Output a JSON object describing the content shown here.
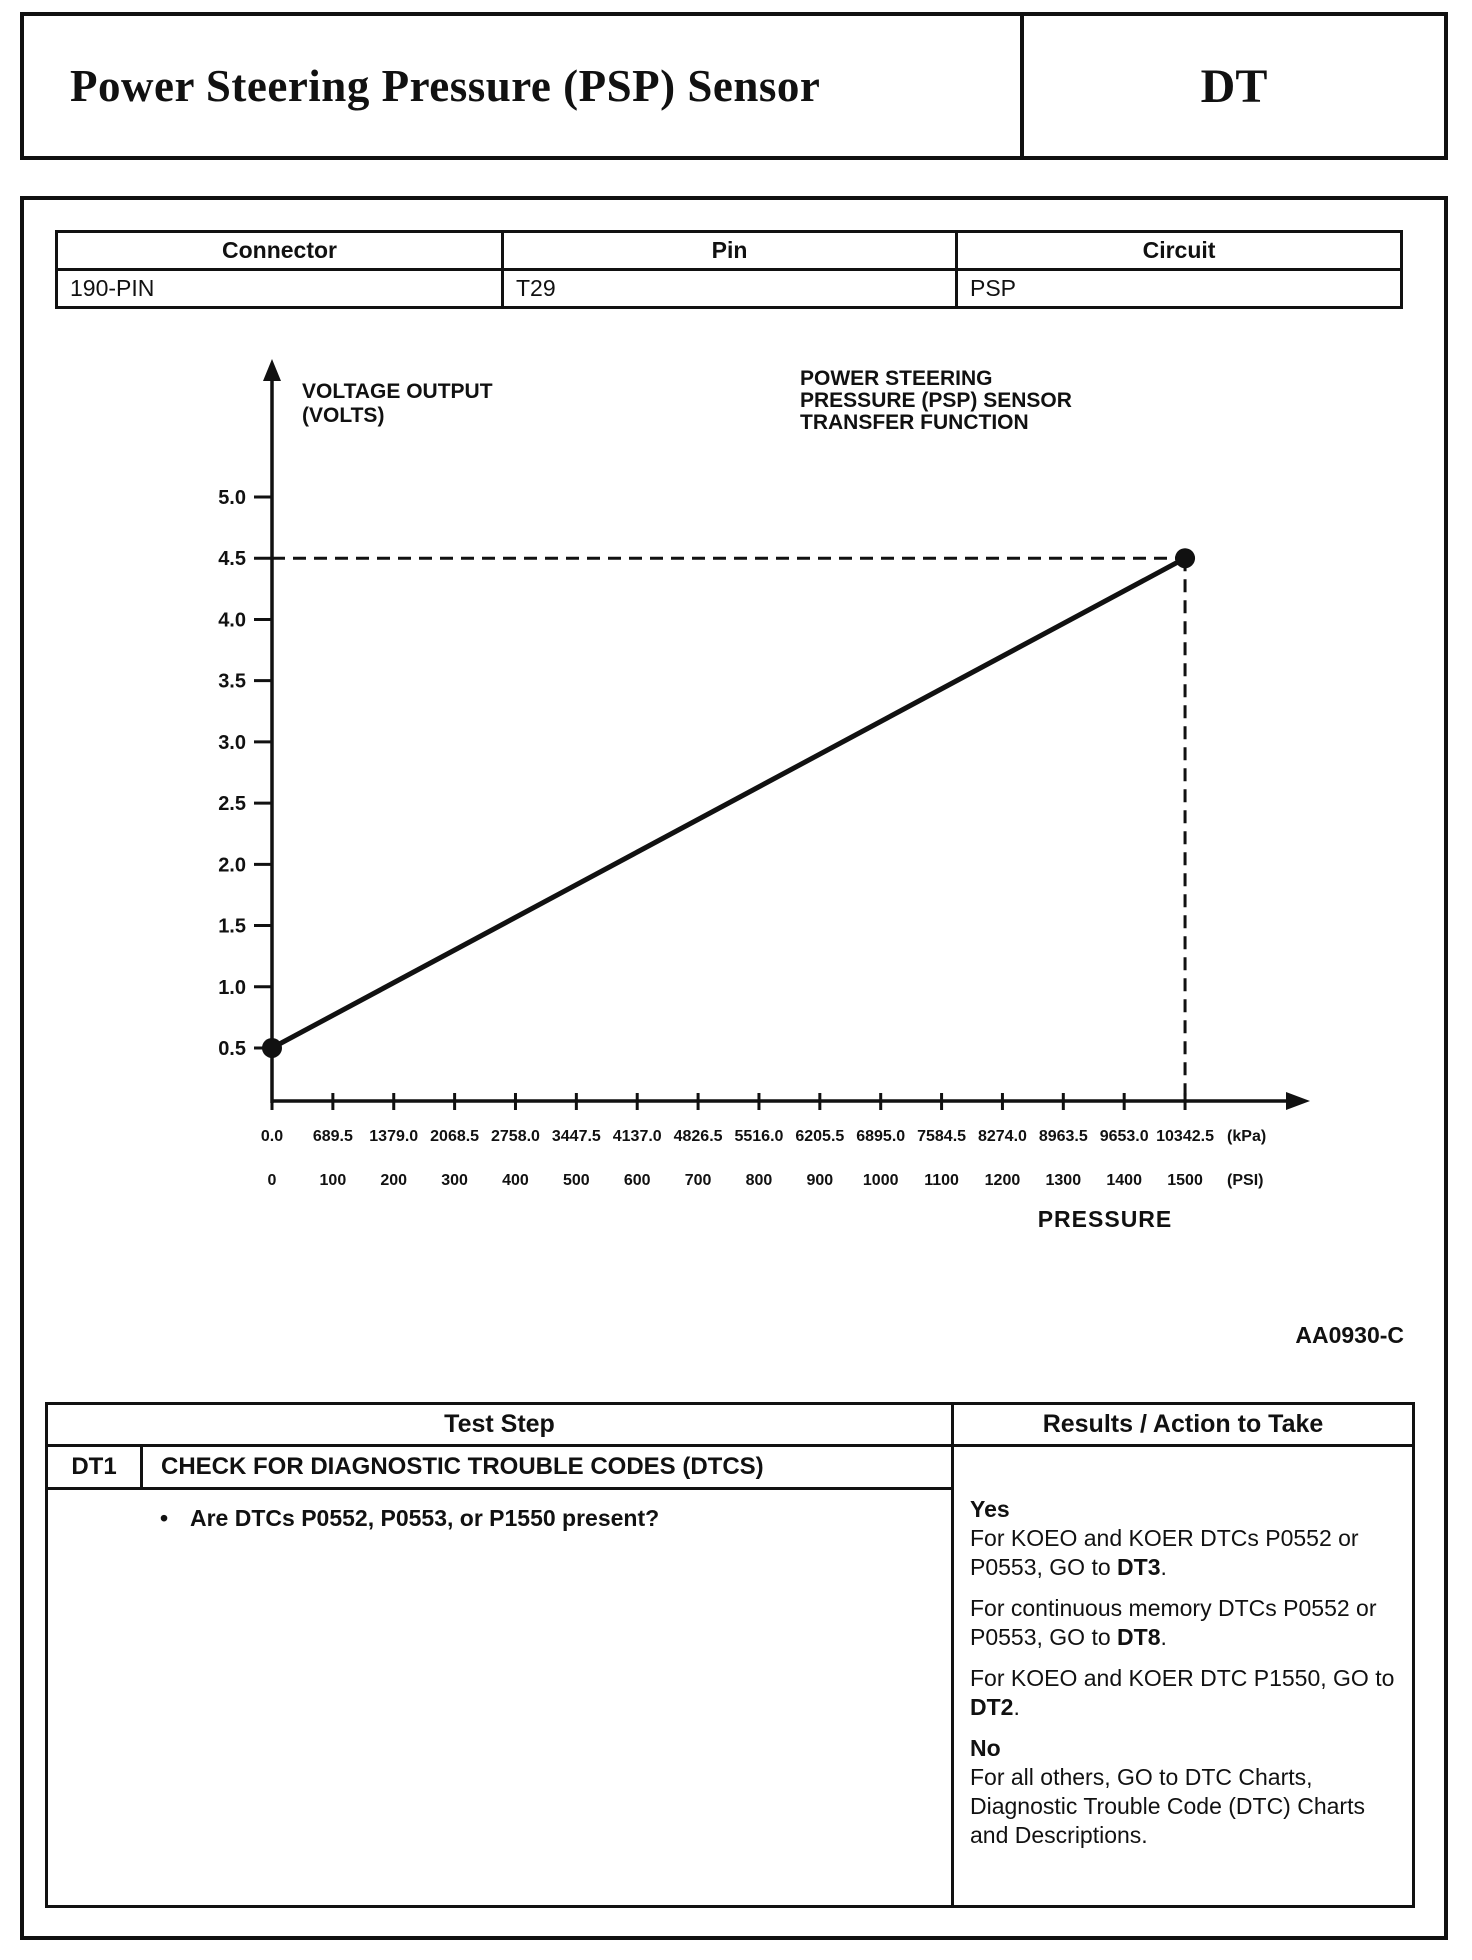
{
  "page": {
    "title": "Power Steering Pressure (PSP) Sensor",
    "code": "DT",
    "figure_ref": "AA0930-C"
  },
  "connector_table": {
    "headers": [
      "Connector",
      "Pin",
      "Circuit"
    ],
    "rows": [
      [
        "190-PIN",
        "T29",
        "PSP"
      ]
    ]
  },
  "chart_data": {
    "type": "line",
    "title_lines": [
      "POWER STEERING",
      "PRESSURE (PSP) SENSOR",
      "TRANSFER FUNCTION"
    ],
    "y_axis_label_lines": [
      "VOLTAGE OUTPUT",
      "(VOLTS)"
    ],
    "x_axis_label": "PRESSURE",
    "y_ticks": [
      "5.0",
      "4.5",
      "4.0",
      "3.5",
      "3.0",
      "2.5",
      "2.0",
      "1.5",
      "1.0",
      "0.5"
    ],
    "x_ticks_kpa": [
      "0.0",
      "689.5",
      "1379.0",
      "2068.5",
      "2758.0",
      "3447.5",
      "4137.0",
      "4826.5",
      "5516.0",
      "6205.5",
      "6895.0",
      "7584.5",
      "8274.0",
      "8963.5",
      "9653.0",
      "10342.5"
    ],
    "x_ticks_psi": [
      "0",
      "100",
      "200",
      "300",
      "400",
      "500",
      "600",
      "700",
      "800",
      "900",
      "1000",
      "1100",
      "1200",
      "1300",
      "1400",
      "1500"
    ],
    "kpa_unit": "(kPa)",
    "psi_unit": "(PSI)",
    "ylim": [
      0,
      5.0
    ],
    "xlim_psi": [
      0,
      1500
    ],
    "reference_volts": 4.5,
    "series": [
      {
        "name": "PSP sensor transfer function",
        "points": [
          {
            "psi": 0,
            "kpa": 0.0,
            "volts": 0.5
          },
          {
            "psi": 1500,
            "kpa": 10342.5,
            "volts": 4.5
          }
        ]
      }
    ]
  },
  "test_table": {
    "headers": {
      "left": "Test Step",
      "right": "Results / Action to Take"
    },
    "step_id": "DT1",
    "step_title": "CHECK FOR DIAGNOSTIC TROUBLE CODES (DTCS)",
    "bullet": "•",
    "question": "Are DTCs P0552, P0553, or P1550 present?",
    "results": [
      {
        "gap": false,
        "segments": [
          {
            "text": "Yes",
            "bold": true
          }
        ]
      },
      {
        "gap": false,
        "segments": [
          {
            "text": "For KOEO and KOER DTCs P0552 or P0553, GO to ",
            "bold": false
          },
          {
            "text": "DT3",
            "bold": true
          },
          {
            "text": ".",
            "bold": false
          }
        ]
      },
      {
        "gap": true,
        "segments": [
          {
            "text": "For continuous memory DTCs P0552 or P0553, GO to ",
            "bold": false
          },
          {
            "text": "DT8",
            "bold": true
          },
          {
            "text": ".",
            "bold": false
          }
        ]
      },
      {
        "gap": true,
        "segments": [
          {
            "text": "For KOEO and KOER DTC P1550, GO to ",
            "bold": false
          },
          {
            "text": "DT2",
            "bold": true
          },
          {
            "text": ".",
            "bold": false
          }
        ]
      },
      {
        "gap": true,
        "segments": [
          {
            "text": "No",
            "bold": true
          }
        ]
      },
      {
        "gap": false,
        "segments": [
          {
            "text": "For all others, GO to DTC Charts, Diagnostic Trouble Code (DTC) Charts and Descriptions.",
            "bold": false
          }
        ]
      }
    ]
  }
}
